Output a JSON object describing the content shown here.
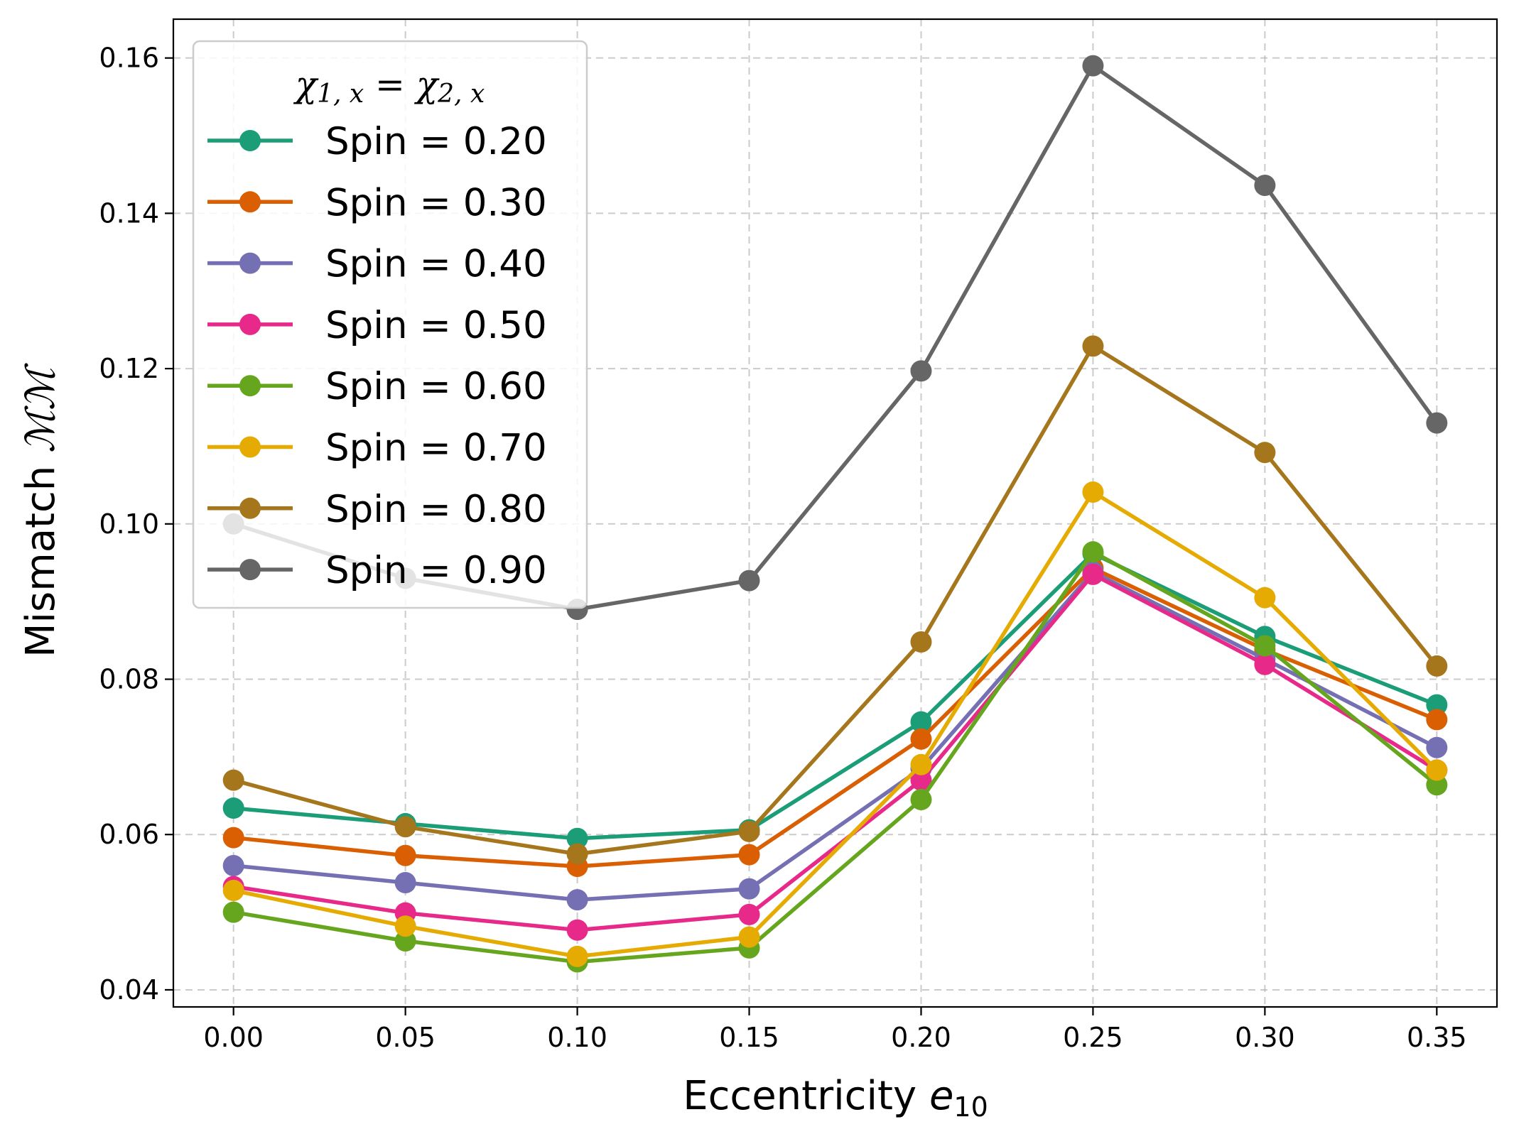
{
  "chart_data": {
    "type": "line",
    "xlabel_main": "Eccentricity ",
    "xlabel_var": "e",
    "xlabel_sub": "10",
    "ylabel_main": "Mismatch ",
    "ylabel_math": "ℳℳ",
    "xlim": [
      -0.0175,
      0.3675
    ],
    "ylim": [
      0.0378,
      0.165
    ],
    "xticks": [
      0.0,
      0.05,
      0.1,
      0.15,
      0.2,
      0.25,
      0.3,
      0.35
    ],
    "xtick_labels": [
      "0.00",
      "0.05",
      "0.10",
      "0.15",
      "0.20",
      "0.25",
      "0.30",
      "0.35"
    ],
    "yticks": [
      0.04,
      0.06,
      0.08,
      0.1,
      0.12,
      0.14,
      0.16
    ],
    "ytick_labels": [
      "0.04",
      "0.06",
      "0.08",
      "0.10",
      "0.12",
      "0.14",
      "0.16"
    ],
    "grid": true,
    "legend_placement": "upper-left",
    "legend_title_a": "χ",
    "legend_title_a_sub": "1, x",
    "legend_title_eq": " = ",
    "legend_title_b": "χ",
    "legend_title_b_sub": "2, x",
    "x": [
      0.0,
      0.05,
      0.1,
      0.15,
      0.2,
      0.25,
      0.3,
      0.35
    ],
    "series": [
      {
        "name": "Spin = 0.20",
        "color": "#1b9e77",
        "values": [
          0.0634,
          0.0614,
          0.0595,
          0.0606,
          0.0745,
          0.0962,
          0.0855,
          0.0767
        ]
      },
      {
        "name": "Spin = 0.30",
        "color": "#d95f02",
        "values": [
          0.0596,
          0.0573,
          0.0559,
          0.0574,
          0.0723,
          0.0943,
          0.0838,
          0.0748
        ]
      },
      {
        "name": "Spin = 0.40",
        "color": "#7570b3",
        "values": [
          0.056,
          0.0538,
          0.0516,
          0.053,
          0.0685,
          0.0938,
          0.0826,
          0.0712
        ]
      },
      {
        "name": "Spin = 0.50",
        "color": "#e7298a",
        "values": [
          0.0533,
          0.0499,
          0.0477,
          0.0497,
          0.067,
          0.0935,
          0.0819,
          0.0683
        ]
      },
      {
        "name": "Spin = 0.60",
        "color": "#66a61e",
        "values": [
          0.05,
          0.0463,
          0.0436,
          0.0454,
          0.0645,
          0.0964,
          0.0843,
          0.0664
        ]
      },
      {
        "name": "Spin = 0.70",
        "color": "#e6ab02",
        "values": [
          0.0528,
          0.0482,
          0.0443,
          0.0468,
          0.069,
          0.1041,
          0.0905,
          0.0683
        ]
      },
      {
        "name": "Spin = 0.80",
        "color": "#a6761d",
        "values": [
          0.067,
          0.061,
          0.0575,
          0.0604,
          0.0848,
          0.1229,
          0.1092,
          0.0817
        ]
      },
      {
        "name": "Spin = 0.90",
        "color": "#666666",
        "values": [
          0.1,
          0.093,
          0.089,
          0.0927,
          0.1197,
          0.159,
          0.1436,
          0.113
        ]
      }
    ]
  }
}
